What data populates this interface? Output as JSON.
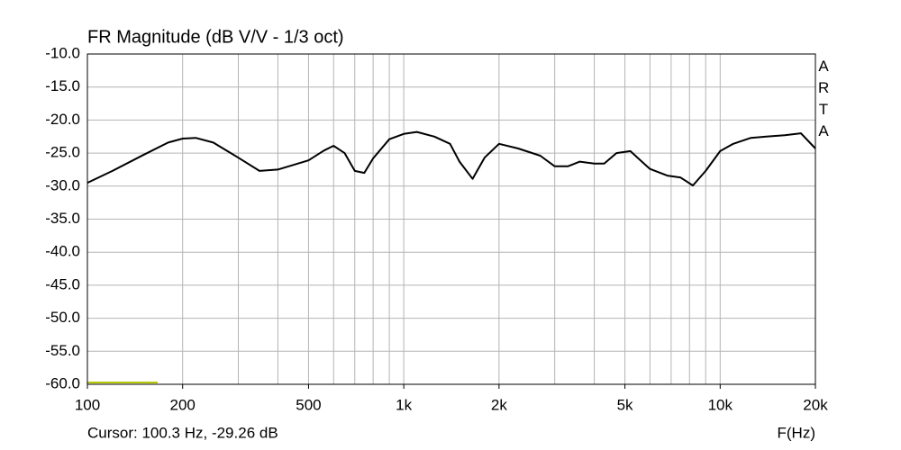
{
  "chart_data": {
    "type": "line",
    "title": "FR Magnitude (dB V/V - 1/3 oct)",
    "xlabel": "F(Hz)",
    "cursor": "Cursor: 100.3 Hz, -29.26 dB",
    "watermark": "ARTA",
    "x_scale": "log",
    "grid": true,
    "xlim": [
      100,
      20000
    ],
    "xticks": [
      {
        "value": 100,
        "label": "100"
      },
      {
        "value": 200,
        "label": "200"
      },
      {
        "value": 500,
        "label": "500"
      },
      {
        "value": 1000,
        "label": "1k"
      },
      {
        "value": 2000,
        "label": "2k"
      },
      {
        "value": 5000,
        "label": "5k"
      },
      {
        "value": 10000,
        "label": "10k"
      },
      {
        "value": 20000,
        "label": "20k"
      }
    ],
    "xgrid": [
      100,
      200,
      300,
      400,
      500,
      600,
      700,
      800,
      900,
      1000,
      2000,
      3000,
      4000,
      5000,
      6000,
      7000,
      8000,
      9000,
      10000,
      20000
    ],
    "ylim": [
      -60,
      -10
    ],
    "yticks": [
      {
        "value": -10,
        "label": "-10.0"
      },
      {
        "value": -15,
        "label": "-15.0"
      },
      {
        "value": -20,
        "label": "-20.0"
      },
      {
        "value": -25,
        "label": "-25.0"
      },
      {
        "value": -30,
        "label": "-30.0"
      },
      {
        "value": -35,
        "label": "-35.0"
      },
      {
        "value": -40,
        "label": "-40.0"
      },
      {
        "value": -45,
        "label": "-45.0"
      },
      {
        "value": -50,
        "label": "-50.0"
      },
      {
        "value": -55,
        "label": "-55.0"
      },
      {
        "value": -60,
        "label": "-60.0"
      }
    ],
    "color": "#000000",
    "x": [
      100,
      120,
      150,
      180,
      200,
      220,
      250,
      300,
      350,
      400,
      500,
      560,
      600,
      650,
      700,
      750,
      800,
      900,
      1000,
      1100,
      1250,
      1400,
      1500,
      1650,
      1800,
      2000,
      2300,
      2700,
      3000,
      3300,
      3600,
      4000,
      4300,
      4700,
      5200,
      5600,
      6000,
      6800,
      7500,
      8200,
      9000,
      10000,
      11000,
      12500,
      14000,
      16000,
      18000,
      20000
    ],
    "values": [
      -29.5,
      -27.7,
      -25.3,
      -23.4,
      -22.8,
      -22.7,
      -23.4,
      -25.7,
      -27.7,
      -27.5,
      -26.1,
      -24.6,
      -23.9,
      -25.0,
      -27.7,
      -28.0,
      -25.8,
      -22.9,
      -22.1,
      -21.8,
      -22.5,
      -23.6,
      -26.3,
      -28.9,
      -25.7,
      -23.6,
      -24.3,
      -25.4,
      -27.0,
      -27.0,
      -26.3,
      -26.6,
      -26.6,
      -25.0,
      -24.7,
      -26.1,
      -27.4,
      -28.4,
      -28.7,
      -29.9,
      -27.7,
      -24.7,
      -23.6,
      -22.7,
      -22.5,
      -22.3,
      -22.0,
      -24.3
    ]
  }
}
